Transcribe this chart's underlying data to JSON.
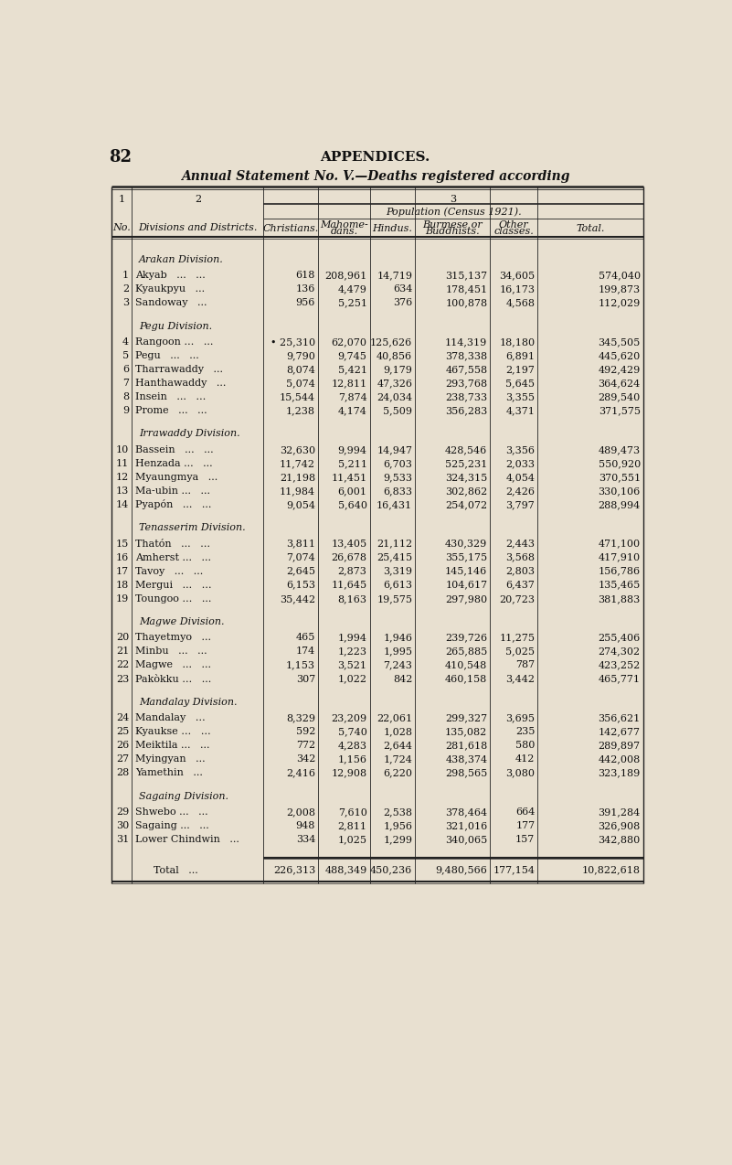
{
  "page_num": "82",
  "main_title": "APPENDICES.",
  "sub_title": "Annual Statement No. V.—Deaths registered according",
  "pop_header": "Population (Census 1921).",
  "col_headers": [
    "Christians.",
    "Mahome-\ndans.",
    "Hindus.",
    "Burmese or\nBuddhists.",
    "Other\nclasses.",
    "Total."
  ],
  "no_header": "No.",
  "div_header": "Divisions and Districts.",
  "bg_color": "#e8e0d0",
  "sections": [
    {
      "section_name": "Arakan Division.",
      "rows": [
        {
          "no": "1",
          "name": "Akyab   ...   ...",
          "christians": "618",
          "mahome": "208,961",
          "hindus": "14,719",
          "burmese": "315,137",
          "other": "34,605",
          "total": "574,040"
        },
        {
          "no": "2",
          "name": "Kyaukpyu   ...",
          "christians": "136",
          "mahome": "4,479",
          "hindus": "634",
          "burmese": "178,451",
          "other": "16,173",
          "total": "199,873"
        },
        {
          "no": "3",
          "name": "Sandoway   ...",
          "christians": "956",
          "mahome": "5,251",
          "hindus": "376",
          "burmese": "100,878",
          "other": "4,568",
          "total": "112,029"
        }
      ]
    },
    {
      "section_name": "Pegu Division.",
      "rows": [
        {
          "no": "4",
          "name": "Rangoon …   ...",
          "christians": "• 25,310",
          "mahome": "62,070",
          "hindus": "125,626",
          "burmese": "114,319",
          "other": "18,180",
          "total": "345,505"
        },
        {
          "no": "5",
          "name": "Pegu   ...   ...",
          "christians": "9,790",
          "mahome": "9,745",
          "hindus": "40,856",
          "burmese": "378,338",
          "other": "6,891",
          "total": "445,620"
        },
        {
          "no": "6",
          "name": "Tharrawaddy   ...",
          "christians": "8,074",
          "mahome": "5,421",
          "hindus": "9,179",
          "burmese": "467,558",
          "other": "2,197",
          "total": "492,429"
        },
        {
          "no": "7",
          "name": "Hanthawaddy   ...",
          "christians": "5,074",
          "mahome": "12,811",
          "hindus": "47,326",
          "burmese": "293,768",
          "other": "5,645",
          "total": "364,624"
        },
        {
          "no": "8",
          "name": "Insein   ...   …",
          "christians": "15,544",
          "mahome": "7,874",
          "hindus": "24,034",
          "burmese": "238,733",
          "other": "3,355",
          "total": "289,540"
        },
        {
          "no": "9",
          "name": "Prome   ...   ...",
          "christians": "1,238",
          "mahome": "4,174",
          "hindus": "5,509",
          "burmese": "356,283",
          "other": "4,371",
          "total": "371,575"
        }
      ]
    },
    {
      "section_name": "Irrawaddy Division.",
      "rows": [
        {
          "no": "10",
          "name": "Bassein   ...   ...",
          "christians": "32,630",
          "mahome": "9,994",
          "hindus": "14,947",
          "burmese": "428,546",
          "other": "3,356",
          "total": "489,473"
        },
        {
          "no": "11",
          "name": "Henzada ...   ...",
          "christians": "11,742",
          "mahome": "5,211",
          "hindus": "6,703",
          "burmese": "525,231",
          "other": "2,033",
          "total": "550,920"
        },
        {
          "no": "12",
          "name": "Myaungmya   ...",
          "christians": "21,198",
          "mahome": "11,451",
          "hindus": "9,533",
          "burmese": "324,315",
          "other": "4,054",
          "total": "370,551"
        },
        {
          "no": "13",
          "name": "Ma-ubin ...   ...",
          "christians": "11,984",
          "mahome": "6,001",
          "hindus": "6,833",
          "burmese": "302,862",
          "other": "2,426",
          "total": "330,106"
        },
        {
          "no": "14",
          "name": "Pyapón   ...   ...",
          "christians": "9,054",
          "mahome": "5,640",
          "hindus": "16,431",
          "burmese": "254,072",
          "other": "3,797",
          "total": "288,994"
        }
      ]
    },
    {
      "section_name": "Tenasserim Division.",
      "rows": [
        {
          "no": "15",
          "name": "Thatón   ...   …",
          "christians": "3,811",
          "mahome": "13,405",
          "hindus": "21,112",
          "burmese": "430,329",
          "other": "2,443",
          "total": "471,100"
        },
        {
          "no": "16",
          "name": "Amherst ...   ...",
          "christians": "7,074",
          "mahome": "26,678",
          "hindus": "25,415",
          "burmese": "355,175",
          "other": "3,568",
          "total": "417,910"
        },
        {
          "no": "17",
          "name": "Tavoy   ...   ...",
          "christians": "2,645",
          "mahome": "2,873",
          "hindus": "3,319",
          "burmese": "145,146",
          "other": "2,803",
          "total": "156,786"
        },
        {
          "no": "18",
          "name": "Mergui   ...   …",
          "christians": "6,153",
          "mahome": "11,645",
          "hindus": "6,613",
          "burmese": "104,617",
          "other": "6,437",
          "total": "135,465"
        },
        {
          "no": "19",
          "name": "Toungoo …   ...",
          "christians": "35,442",
          "mahome": "8,163",
          "hindus": "19,575",
          "burmese": "297,980",
          "other": "20,723",
          "total": "381,883"
        }
      ]
    },
    {
      "section_name": "Magwe Division.",
      "rows": [
        {
          "no": "20",
          "name": "Thayetmyo   ...",
          "christians": "465",
          "mahome": "1,994",
          "hindus": "1,946",
          "burmese": "239,726",
          "other": "11,275",
          "total": "255,406"
        },
        {
          "no": "21",
          "name": "Minbu   ...   ...",
          "christians": "174",
          "mahome": "1,223",
          "hindus": "1,995",
          "burmese": "265,885",
          "other": "5,025",
          "total": "274,302"
        },
        {
          "no": "22",
          "name": "Magwe   ...   ...",
          "christians": "1,153",
          "mahome": "3,521",
          "hindus": "7,243",
          "burmese": "410,548",
          "other": "787",
          "total": "423,252"
        },
        {
          "no": "23",
          "name": "Pakòkku …   ...",
          "christians": "307",
          "mahome": "1,022",
          "hindus": "842",
          "burmese": "460,158",
          "other": "3,442",
          "total": "465,771"
        }
      ]
    },
    {
      "section_name": "Mandalay Division.",
      "rows": [
        {
          "no": "24",
          "name": "Mandalay   …",
          "christians": "8,329",
          "mahome": "23,209",
          "hindus": "22,061",
          "burmese": "299,327",
          "other": "3,695",
          "total": "356,621"
        },
        {
          "no": "25",
          "name": "Kyaukse …   …",
          "christians": "592",
          "mahome": "5,740",
          "hindus": "1,028",
          "burmese": "135,082",
          "other": "235",
          "total": "142,677"
        },
        {
          "no": "26",
          "name": "Meiktila ...   ...",
          "christians": "772",
          "mahome": "4,283",
          "hindus": "2,644",
          "burmese": "281,618",
          "other": "580",
          "total": "289,897"
        },
        {
          "no": "27",
          "name": "Myingyan   ...",
          "christians": "342",
          "mahome": "1,156",
          "hindus": "1,724",
          "burmese": "438,374",
          "other": "412",
          "total": "442,008"
        },
        {
          "no": "28",
          "name": "Yamethin   ...",
          "christians": "2,416",
          "mahome": "12,908",
          "hindus": "6,220",
          "burmese": "298,565",
          "other": "3,080",
          "total": "323,189"
        }
      ]
    },
    {
      "section_name": "Sagaing Division.",
      "rows": [
        {
          "no": "29",
          "name": "Shwebo ...   ...",
          "christians": "2,008",
          "mahome": "7,610",
          "hindus": "2,538",
          "burmese": "378,464",
          "other": "664",
          "total": "391,284"
        },
        {
          "no": "30",
          "name": "Sagaing ...   ...",
          "christians": "948",
          "mahome": "2,811",
          "hindus": "1,956",
          "burmese": "321,016",
          "other": "177",
          "total": "326,908"
        },
        {
          "no": "31",
          "name": "Lower Chindwin   ...",
          "christians": "334",
          "mahome": "1,025",
          "hindus": "1,299",
          "burmese": "340,065",
          "other": "157",
          "total": "342,880"
        }
      ]
    }
  ],
  "total_row": {
    "christians": "226,313",
    "mahome": "488,349",
    "hindus": "450,236",
    "burmese": "9,480,566",
    "other": "177,154",
    "total": "10,822,618"
  }
}
